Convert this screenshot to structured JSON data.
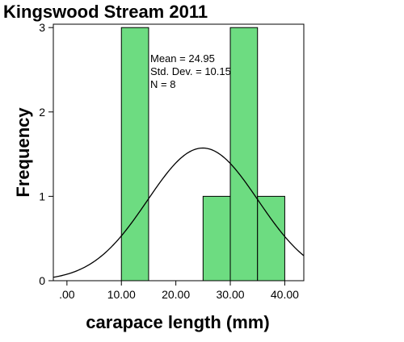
{
  "chart_data": {
    "type": "histogram",
    "title": "Kingswood Stream 2011",
    "xlabel": "carapace length (mm)",
    "ylabel": "Frequency",
    "xlim": [
      -2.5,
      43.5
    ],
    "ylim": [
      0,
      3.04
    ],
    "x_ticks": [
      {
        "value": 0,
        "label": ".00"
      },
      {
        "value": 10,
        "label": "10.00"
      },
      {
        "value": 20,
        "label": "20.00"
      },
      {
        "value": 30,
        "label": "30.00"
      },
      {
        "value": 40,
        "label": "40.00"
      }
    ],
    "y_ticks": [
      {
        "value": 0,
        "label": "0"
      },
      {
        "value": 1,
        "label": "1"
      },
      {
        "value": 2,
        "label": "2"
      },
      {
        "value": 3,
        "label": "3"
      }
    ],
    "bins": [
      {
        "x0": 10,
        "x1": 15,
        "count": 3
      },
      {
        "x0": 25,
        "x1": 30,
        "count": 1
      },
      {
        "x0": 30,
        "x1": 35,
        "count": 3
      },
      {
        "x0": 35,
        "x1": 40,
        "count": 1
      }
    ],
    "bin_width": 5,
    "normal_curve": {
      "mean": 24.95,
      "sd": 10.15,
      "n": 8
    },
    "stats": {
      "mean": "Mean = 24.95",
      "sd": "Std. Dev. = 10.15",
      "n": "N = 8"
    },
    "grid": false,
    "colors": {
      "bar_fill": "#6ddc81",
      "bar_stroke": "#000000",
      "curve": "#000000",
      "frame": "#000000"
    }
  }
}
